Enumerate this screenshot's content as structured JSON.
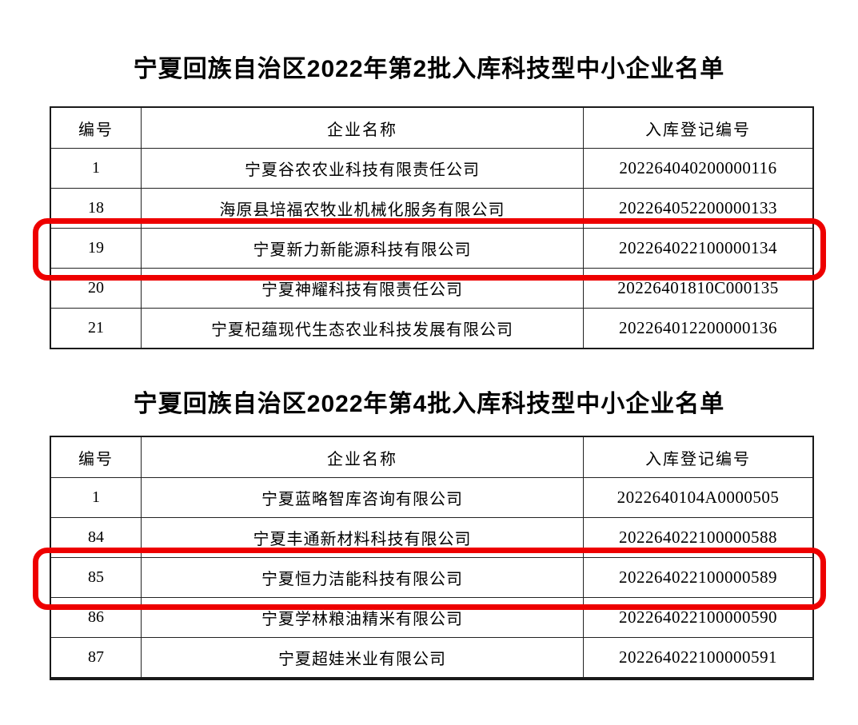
{
  "colors": {
    "highlight": "#ee0000",
    "text": "#000000",
    "table_border": "#1a1a1a",
    "page_background": "#ffffff"
  },
  "tables": [
    {
      "title": "宁夏回族自治区2022年第2批入库科技型中小企业名单",
      "columns": [
        "编号",
        "企业名称",
        "入库登记编号"
      ],
      "rows": [
        {
          "no": "1",
          "name": "宁夏谷农农业科技有限责任公司",
          "reg": "202264040200000116",
          "highlighted": false
        },
        {
          "no": "18",
          "name": "海原县培福农牧业机械化服务有限公司",
          "reg": "202264052200000133",
          "highlighted": false
        },
        {
          "no": "19",
          "name": "宁夏新力新能源科技有限公司",
          "reg": "202264022100000134",
          "highlighted": true
        },
        {
          "no": "20",
          "name": "宁夏神耀科技有限责任公司",
          "reg": "20226401810C000135",
          "highlighted": false
        },
        {
          "no": "21",
          "name": "宁夏杞蕴现代生态农业科技发展有限公司",
          "reg": "202264012200000136",
          "highlighted": false
        }
      ]
    },
    {
      "title": "宁夏回族自治区2022年第4批入库科技型中小企业名单",
      "columns": [
        "编号",
        "企业名称",
        "入库登记编号"
      ],
      "rows": [
        {
          "no": "1",
          "name": "宁夏蓝略智库咨询有限公司",
          "reg": "2022640104A0000505",
          "highlighted": false
        },
        {
          "no": "84",
          "name": "宁夏丰通新材料科技有限公司",
          "reg": "202264022100000588",
          "highlighted": false
        },
        {
          "no": "85",
          "name": "宁夏恒力洁能科技有限公司",
          "reg": "202264022100000589",
          "highlighted": true
        },
        {
          "no": "86",
          "name": "宁夏学林粮油精米有限公司",
          "reg": "202264022100000590",
          "highlighted": false
        },
        {
          "no": "87",
          "name": "宁夏超娃米业有限公司",
          "reg": "202264022100000591",
          "highlighted": false
        }
      ]
    }
  ]
}
